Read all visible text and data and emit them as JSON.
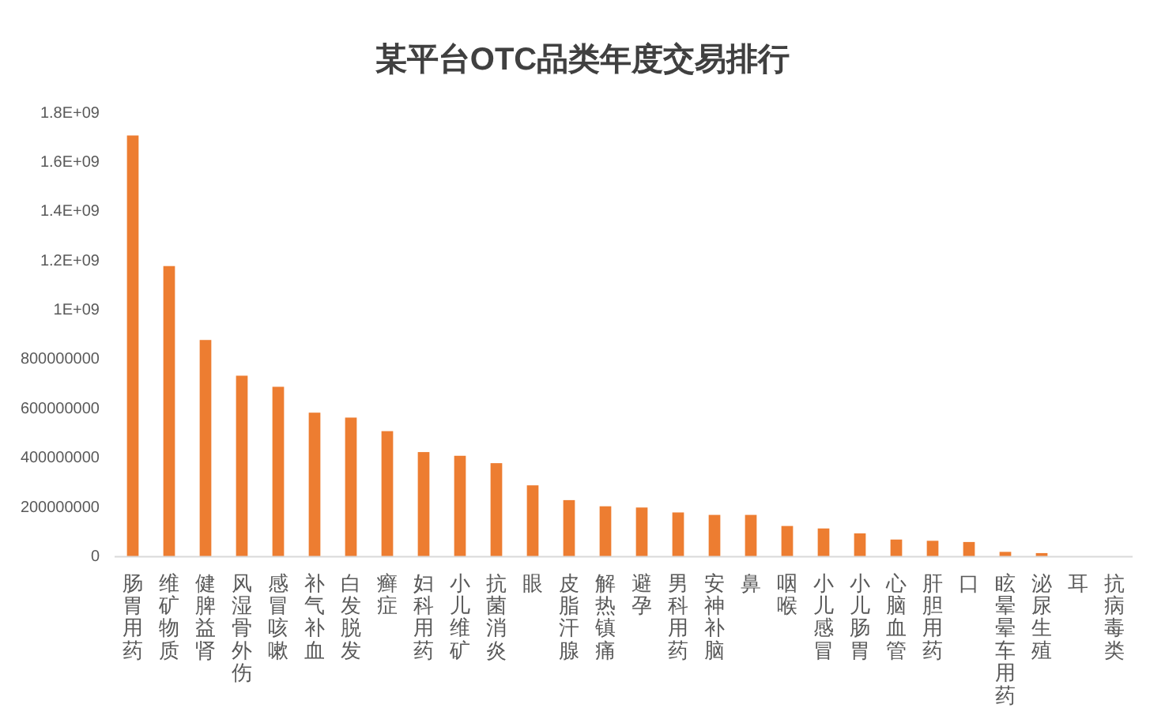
{
  "chart_data": {
    "type": "bar",
    "title": "某平台OTC品类年度交易排行",
    "categories": [
      "肠胃用药",
      "维矿物质",
      "健脾益肾",
      "风湿骨外伤",
      "感冒咳嗽",
      "补气补血",
      "白发脱发",
      "癣症",
      "妇科用药",
      "小儿维矿",
      "抗菌消炎",
      "眼",
      "皮脂汗腺",
      "解热镇痛",
      "避孕",
      "男科用药",
      "安神补脑",
      "鼻",
      "咽喉",
      "小儿感冒",
      "小儿肠胃",
      "心脑血管",
      "肝胆用药",
      "口",
      "眩晕晕车用药",
      "泌尿生殖",
      "耳",
      "抗病毒类"
    ],
    "values": [
      1710000000,
      1180000000,
      880000000,
      735000000,
      690000000,
      585000000,
      565000000,
      510000000,
      425000000,
      410000000,
      380000000,
      290000000,
      230000000,
      205000000,
      200000000,
      180000000,
      170000000,
      170000000,
      125000000,
      115000000,
      95000000,
      70000000,
      65000000,
      60000000,
      20000000,
      15000000,
      0,
      0
    ],
    "color": "#ed7d31",
    "ylim": [
      0,
      1800000000
    ],
    "yticks": [
      0,
      200000000,
      400000000,
      600000000,
      800000000,
      {
        "value": 1000000000,
        "label": "1E+09"
      },
      {
        "value": 1200000000,
        "label": "1.2E+09"
      },
      {
        "value": 1400000000,
        "label": "1.4E+09"
      },
      {
        "value": 1600000000,
        "label": "1.6E+09"
      },
      {
        "value": 1800000000,
        "label": "1.8E+09"
      }
    ]
  }
}
